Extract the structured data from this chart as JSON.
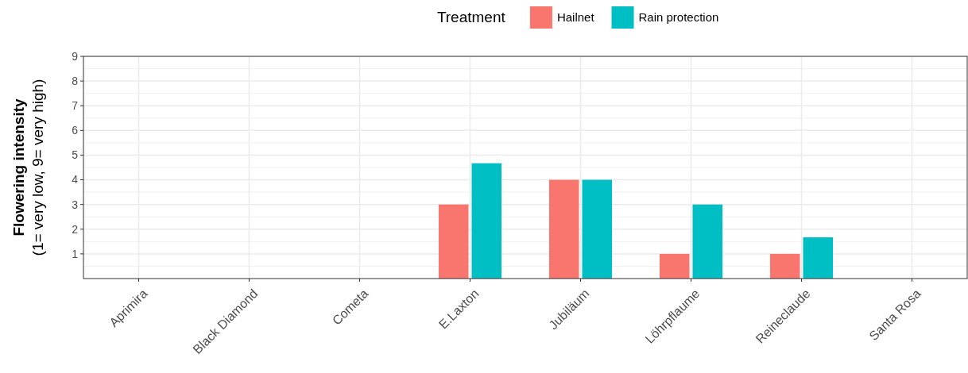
{
  "chart_data": {
    "type": "bar",
    "ylabel": "Flowering intensity\n(1= very low, 9= very high)",
    "legend_title": "Treatment",
    "legend": "top",
    "categories": [
      "Aprimira",
      "Black Diamond",
      "Cometa",
      "E.Laxton",
      "Jubiläum",
      "Löhrpflaume",
      "Reineclaude",
      "Santa Rosa"
    ],
    "series": [
      {
        "name": "Hailnet",
        "color": "#f8766d",
        "values": [
          null,
          null,
          null,
          3,
          4,
          1,
          1,
          null
        ]
      },
      {
        "name": "Rain protection",
        "color": "#00bfc4",
        "values": [
          null,
          null,
          null,
          4.67,
          4,
          3,
          1.67,
          null
        ]
      }
    ],
    "ylim": [
      0,
      9
    ],
    "yticks": [
      1,
      2,
      3,
      4,
      5,
      6,
      7,
      8,
      9
    ],
    "grid": true
  }
}
